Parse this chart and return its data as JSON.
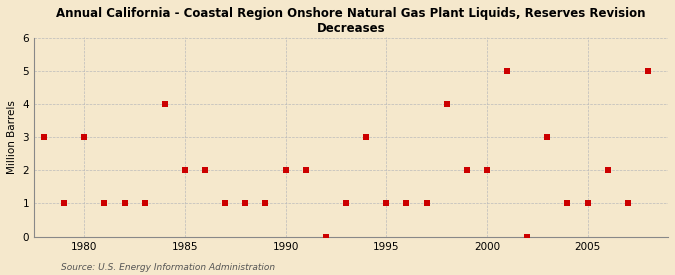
{
  "title": "Annual California - Coastal Region Onshore Natural Gas Plant Liquids, Reserves Revision\nDecreases",
  "ylabel": "Million Barrels",
  "source": "Source: U.S. Energy Information Administration",
  "background_color": "#f5e8cc",
  "years": [
    1978,
    1979,
    1980,
    1981,
    1982,
    1983,
    1984,
    1985,
    1986,
    1987,
    1988,
    1989,
    1990,
    1991,
    1992,
    1993,
    1994,
    1995,
    1996,
    1997,
    1998,
    1999,
    2000,
    2001,
    2002,
    2003,
    2004,
    2005,
    2006,
    2007,
    2008
  ],
  "values": [
    3,
    1,
    3,
    1,
    1,
    1,
    4,
    2,
    2,
    1,
    1,
    1,
    2,
    2,
    0,
    1,
    3,
    1,
    1,
    1,
    4,
    2,
    2,
    5,
    0,
    3,
    1,
    1,
    2,
    1,
    5
  ],
  "marker_color": "#cc0000",
  "marker_size": 4,
  "ylim": [
    0,
    6
  ],
  "yticks": [
    0,
    1,
    2,
    3,
    4,
    5,
    6
  ],
  "xlim": [
    1977.5,
    2009
  ],
  "xticks": [
    1980,
    1985,
    1990,
    1995,
    2000,
    2005
  ],
  "grid_color": "#bbbbbb",
  "title_fontsize": 8.5,
  "axis_fontsize": 7.5,
  "source_fontsize": 6.5
}
